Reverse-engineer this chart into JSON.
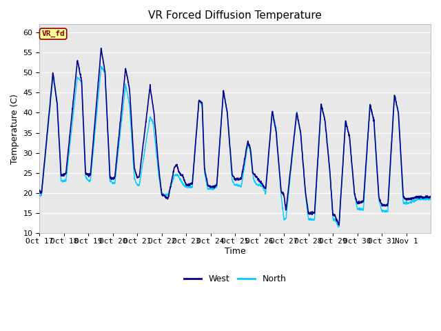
{
  "title": "VR Forced Diffusion Temperature",
  "xlabel": "Time",
  "ylabel": "Temperature (C)",
  "ylim": [
    10,
    62
  ],
  "yticks": [
    10,
    15,
    20,
    25,
    30,
    35,
    40,
    45,
    50,
    55,
    60
  ],
  "xtick_labels": [
    "Oct 17",
    "Oct 18",
    "Oct 19",
    "Oct 20",
    "Oct 21",
    "Oct 22",
    "Oct 23",
    "Oct 24",
    "Oct 25",
    "Oct 26",
    "Oct 27",
    "Oct 28",
    "Oct 29",
    "Oct 30",
    "Oct 31",
    "Nov 1"
  ],
  "west_color": "#00008B",
  "north_color": "#00CCFF",
  "fig_bg_color": "#FFFFFF",
  "plot_bg_color": "#E8E8E8",
  "grid_color": "#FFFFFF",
  "annotation_text": "VR_fd",
  "annotation_bg": "#FFFF99",
  "annotation_border": "#8B0000",
  "legend_west": "West",
  "legend_north": "North",
  "title_fontsize": 11,
  "label_fontsize": 9,
  "tick_fontsize": 8,
  "west_key_x": [
    0.0,
    0.08,
    0.55,
    0.72,
    0.88,
    1.0,
    1.08,
    1.55,
    1.72,
    1.88,
    2.0,
    2.08,
    2.52,
    2.68,
    2.88,
    3.0,
    3.08,
    3.52,
    3.68,
    3.88,
    4.0,
    4.08,
    4.52,
    4.68,
    4.88,
    5.0,
    5.08,
    5.25,
    5.52,
    5.62,
    5.72,
    5.88,
    6.0,
    6.08,
    6.25,
    6.52,
    6.65,
    6.75,
    6.88,
    7.0,
    7.08,
    7.25,
    7.52,
    7.68,
    7.88,
    8.0,
    8.08,
    8.25,
    8.52,
    8.62,
    8.72,
    8.88,
    9.0,
    9.08,
    9.25,
    9.52,
    9.68,
    9.88,
    10.0,
    10.08,
    10.52,
    10.68,
    10.88,
    11.0,
    11.08,
    11.25,
    11.52,
    11.68,
    11.88,
    12.0,
    12.08,
    12.25,
    12.52,
    12.68,
    12.88,
    13.0,
    13.08,
    13.25,
    13.52,
    13.68,
    13.88,
    14.0,
    14.08,
    14.25,
    14.52,
    14.68,
    14.88,
    15.0,
    15.08,
    15.5,
    16.0
  ],
  "west_key_y": [
    20.5,
    20.0,
    50.0,
    42.0,
    24.5,
    24.5,
    25.0,
    53.0,
    48.0,
    25.0,
    24.5,
    24.5,
    56.0,
    50.0,
    24.0,
    23.5,
    24.0,
    51.0,
    46.0,
    26.0,
    24.0,
    24.0,
    46.5,
    40.0,
    26.0,
    19.5,
    19.5,
    18.5,
    26.5,
    27.0,
    25.0,
    24.0,
    22.0,
    22.0,
    22.5,
    43.0,
    42.5,
    26.0,
    22.0,
    21.5,
    21.5,
    22.0,
    45.5,
    40.0,
    24.5,
    23.5,
    23.5,
    23.5,
    33.0,
    31.0,
    25.0,
    24.0,
    23.0,
    22.5,
    21.0,
    40.5,
    35.0,
    20.5,
    19.5,
    15.5,
    40.0,
    35.0,
    20.0,
    15.0,
    15.0,
    15.0,
    42.0,
    38.0,
    25.0,
    14.5,
    14.5,
    12.0,
    38.0,
    34.0,
    20.0,
    17.5,
    17.5,
    18.0,
    42.0,
    38.0,
    19.0,
    17.0,
    17.0,
    17.0,
    44.5,
    40.0,
    19.0,
    18.5,
    18.5,
    19.0,
    19.0
  ],
  "north_key_x": [
    0.0,
    0.08,
    0.55,
    0.72,
    0.88,
    1.0,
    1.08,
    1.55,
    1.72,
    1.88,
    2.0,
    2.08,
    2.52,
    2.68,
    2.88,
    3.0,
    3.08,
    3.52,
    3.68,
    3.88,
    4.0,
    4.08,
    4.52,
    4.65,
    4.88,
    5.0,
    5.08,
    5.25,
    5.52,
    5.65,
    5.75,
    5.88,
    6.0,
    6.08,
    6.25,
    6.52,
    6.65,
    6.75,
    6.88,
    7.0,
    7.08,
    7.25,
    7.52,
    7.68,
    7.88,
    8.0,
    8.08,
    8.25,
    8.52,
    8.65,
    8.75,
    8.88,
    9.0,
    9.08,
    9.25,
    9.52,
    9.68,
    9.88,
    10.0,
    10.08,
    10.52,
    10.68,
    10.88,
    11.0,
    11.08,
    11.25,
    11.52,
    11.68,
    11.88,
    12.0,
    12.08,
    12.25,
    12.52,
    12.68,
    12.88,
    13.0,
    13.08,
    13.25,
    13.52,
    13.68,
    13.88,
    14.0,
    14.08,
    14.25,
    14.52,
    14.68,
    14.88,
    15.0,
    15.08,
    15.5,
    16.0
  ],
  "north_key_y": [
    19.5,
    19.5,
    49.0,
    43.0,
    23.0,
    23.0,
    23.0,
    49.0,
    47.5,
    24.0,
    23.0,
    23.0,
    51.5,
    50.0,
    23.0,
    22.5,
    22.5,
    47.0,
    42.0,
    23.5,
    22.0,
    22.0,
    39.0,
    37.5,
    24.0,
    20.0,
    19.5,
    19.5,
    24.5,
    24.5,
    23.5,
    22.0,
    21.5,
    21.5,
    21.5,
    43.0,
    42.0,
    25.0,
    21.0,
    21.0,
    21.0,
    21.5,
    45.5,
    40.0,
    23.0,
    22.0,
    22.0,
    21.5,
    32.0,
    30.5,
    23.5,
    22.0,
    22.0,
    22.0,
    20.0,
    40.5,
    36.0,
    19.5,
    13.5,
    13.5,
    40.0,
    35.0,
    19.5,
    13.5,
    13.5,
    13.5,
    42.0,
    38.0,
    25.5,
    13.5,
    13.5,
    11.5,
    38.0,
    34.0,
    20.0,
    16.0,
    16.0,
    16.0,
    42.0,
    38.0,
    18.5,
    15.5,
    15.5,
    15.5,
    44.5,
    40.0,
    17.5,
    17.5,
    17.5,
    18.5,
    18.5
  ]
}
